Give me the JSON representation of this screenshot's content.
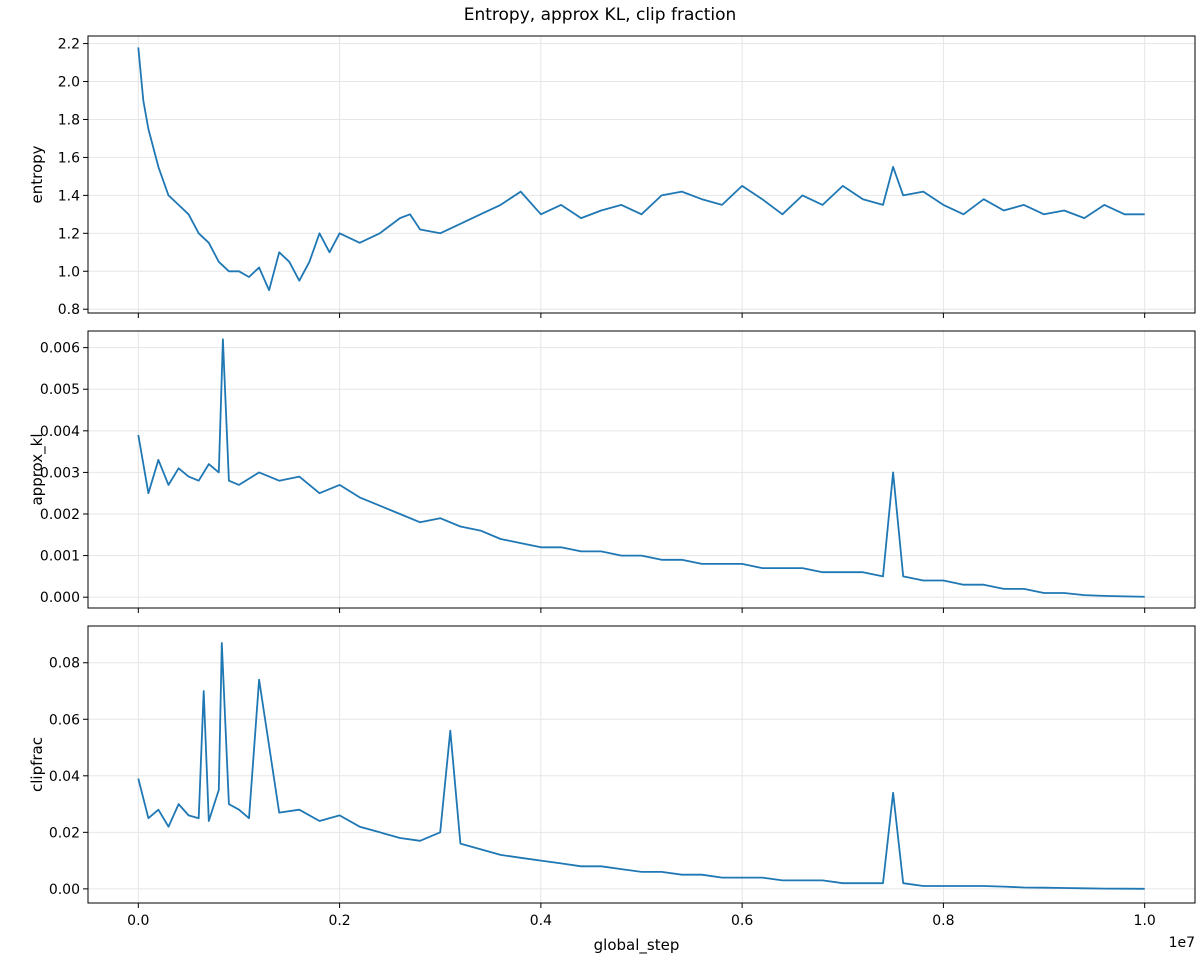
{
  "figure": {
    "title": "Entropy, approx KL, clip fraction",
    "colors": {
      "line": "#1f77b4",
      "grid": "#e6e6e6",
      "axis": "#000000",
      "background": "#ffffff"
    }
  },
  "chart_data": [
    {
      "type": "line",
      "ylabel": "entropy",
      "xlim": [
        -500000,
        10500000
      ],
      "ylim": [
        0.78,
        2.24
      ],
      "yticks": [
        0.8,
        1.0,
        1.2,
        1.4,
        1.6,
        1.8,
        2.0,
        2.2
      ],
      "ytick_labels": [
        "0.8",
        "1.0",
        "1.2",
        "1.4",
        "1.6",
        "1.8",
        "2.0",
        "2.2"
      ],
      "grid": true,
      "series": [
        {
          "x": [
            0,
            50000,
            100000,
            200000,
            300000,
            400000,
            500000,
            600000,
            700000,
            800000,
            900000,
            1000000,
            1100000,
            1200000,
            1300000,
            1400000,
            1500000,
            1600000,
            1700000,
            1800000,
            1900000,
            2000000,
            2200000,
            2400000,
            2600000,
            2700000,
            2800000,
            3000000,
            3200000,
            3400000,
            3600000,
            3800000,
            4000000,
            4200000,
            4400000,
            4600000,
            4800000,
            5000000,
            5200000,
            5400000,
            5600000,
            5800000,
            6000000,
            6200000,
            6400000,
            6600000,
            6800000,
            7000000,
            7200000,
            7400000,
            7500000,
            7600000,
            7800000,
            8000000,
            8200000,
            8400000,
            8600000,
            8800000,
            9000000,
            9200000,
            9400000,
            9600000,
            9800000,
            10000000
          ],
          "y": [
            2.18,
            1.9,
            1.75,
            1.55,
            1.4,
            1.35,
            1.3,
            1.2,
            1.15,
            1.05,
            1.0,
            1.0,
            0.97,
            1.02,
            0.9,
            1.1,
            1.05,
            0.95,
            1.05,
            1.2,
            1.1,
            1.2,
            1.15,
            1.2,
            1.28,
            1.3,
            1.22,
            1.2,
            1.25,
            1.3,
            1.35,
            1.42,
            1.3,
            1.35,
            1.28,
            1.32,
            1.35,
            1.3,
            1.4,
            1.42,
            1.38,
            1.35,
            1.45,
            1.38,
            1.3,
            1.4,
            1.35,
            1.45,
            1.38,
            1.35,
            1.55,
            1.4,
            1.42,
            1.35,
            1.3,
            1.38,
            1.32,
            1.35,
            1.3,
            1.32,
            1.28,
            1.35,
            1.3,
            1.3
          ]
        }
      ]
    },
    {
      "type": "line",
      "ylabel": "approx_kl",
      "xlim": [
        -500000,
        10500000
      ],
      "ylim": [
        -0.00026,
        0.0064
      ],
      "yticks": [
        0.0,
        0.001,
        0.002,
        0.003,
        0.004,
        0.005,
        0.006
      ],
      "ytick_labels": [
        "0.000",
        "0.001",
        "0.002",
        "0.003",
        "0.004",
        "0.005",
        "0.006"
      ],
      "grid": true,
      "series": [
        {
          "x": [
            0,
            100000,
            200000,
            300000,
            400000,
            500000,
            600000,
            700000,
            800000,
            840000,
            900000,
            1000000,
            1200000,
            1400000,
            1600000,
            1800000,
            2000000,
            2200000,
            2400000,
            2600000,
            2800000,
            3000000,
            3200000,
            3400000,
            3600000,
            3800000,
            4000000,
            4200000,
            4400000,
            4600000,
            4800000,
            5000000,
            5200000,
            5400000,
            5600000,
            5800000,
            6000000,
            6200000,
            6400000,
            6600000,
            6800000,
            7000000,
            7200000,
            7400000,
            7500000,
            7600000,
            7800000,
            8000000,
            8200000,
            8400000,
            8600000,
            8800000,
            9000000,
            9200000,
            9400000,
            9600000,
            9800000,
            10000000
          ],
          "y": [
            0.0039,
            0.0025,
            0.0033,
            0.0027,
            0.0031,
            0.0029,
            0.0028,
            0.0032,
            0.003,
            0.0062,
            0.0028,
            0.0027,
            0.003,
            0.0028,
            0.0029,
            0.0025,
            0.0027,
            0.0024,
            0.0022,
            0.002,
            0.0018,
            0.0019,
            0.0017,
            0.0016,
            0.0014,
            0.0013,
            0.0012,
            0.0012,
            0.0011,
            0.0011,
            0.001,
            0.001,
            0.0009,
            0.0009,
            0.0008,
            0.0008,
            0.0008,
            0.0007,
            0.0007,
            0.0007,
            0.0006,
            0.0006,
            0.0006,
            0.0005,
            0.003,
            0.0005,
            0.0004,
            0.0004,
            0.0003,
            0.0003,
            0.0002,
            0.0002,
            0.0001,
            0.0001,
            5e-05,
            3e-05,
            2e-05,
            1e-05
          ]
        }
      ]
    },
    {
      "type": "line",
      "ylabel": "clipfrac",
      "xlim": [
        -500000,
        10500000
      ],
      "ylim": [
        -0.005,
        0.093
      ],
      "yticks": [
        0.0,
        0.02,
        0.04,
        0.06,
        0.08
      ],
      "ytick_labels": [
        "0.00",
        "0.02",
        "0.04",
        "0.06",
        "0.08"
      ],
      "xticks": [
        0,
        2000000,
        4000000,
        6000000,
        8000000,
        10000000
      ],
      "xtick_labels": [
        "0.0",
        "0.2",
        "0.4",
        "0.6",
        "0.8",
        "1.0"
      ],
      "xlabel": "global_step",
      "x_offset_label": "1e7",
      "grid": true,
      "series": [
        {
          "x": [
            0,
            100000,
            200000,
            300000,
            400000,
            500000,
            600000,
            650000,
            700000,
            800000,
            830000,
            900000,
            1000000,
            1100000,
            1200000,
            1400000,
            1600000,
            1800000,
            2000000,
            2200000,
            2400000,
            2600000,
            2800000,
            3000000,
            3100000,
            3200000,
            3400000,
            3600000,
            3800000,
            4000000,
            4200000,
            4400000,
            4600000,
            4800000,
            5000000,
            5200000,
            5400000,
            5600000,
            5800000,
            6000000,
            6200000,
            6400000,
            6600000,
            6800000,
            7000000,
            7200000,
            7400000,
            7500000,
            7600000,
            7800000,
            8000000,
            8200000,
            8400000,
            8600000,
            8800000,
            9000000,
            9200000,
            9400000,
            9600000,
            9800000,
            10000000
          ],
          "y": [
            0.039,
            0.025,
            0.028,
            0.022,
            0.03,
            0.026,
            0.025,
            0.07,
            0.024,
            0.035,
            0.087,
            0.03,
            0.028,
            0.025,
            0.074,
            0.027,
            0.028,
            0.024,
            0.026,
            0.022,
            0.02,
            0.018,
            0.017,
            0.02,
            0.056,
            0.016,
            0.014,
            0.012,
            0.011,
            0.01,
            0.009,
            0.008,
            0.008,
            0.007,
            0.006,
            0.006,
            0.005,
            0.005,
            0.004,
            0.004,
            0.004,
            0.003,
            0.003,
            0.003,
            0.002,
            0.002,
            0.002,
            0.034,
            0.002,
            0.001,
            0.001,
            0.001,
            0.001,
            0.0008,
            0.0005,
            0.0004,
            0.0003,
            0.0002,
            0.0001,
            5e-05,
            2e-05
          ]
        }
      ]
    }
  ]
}
